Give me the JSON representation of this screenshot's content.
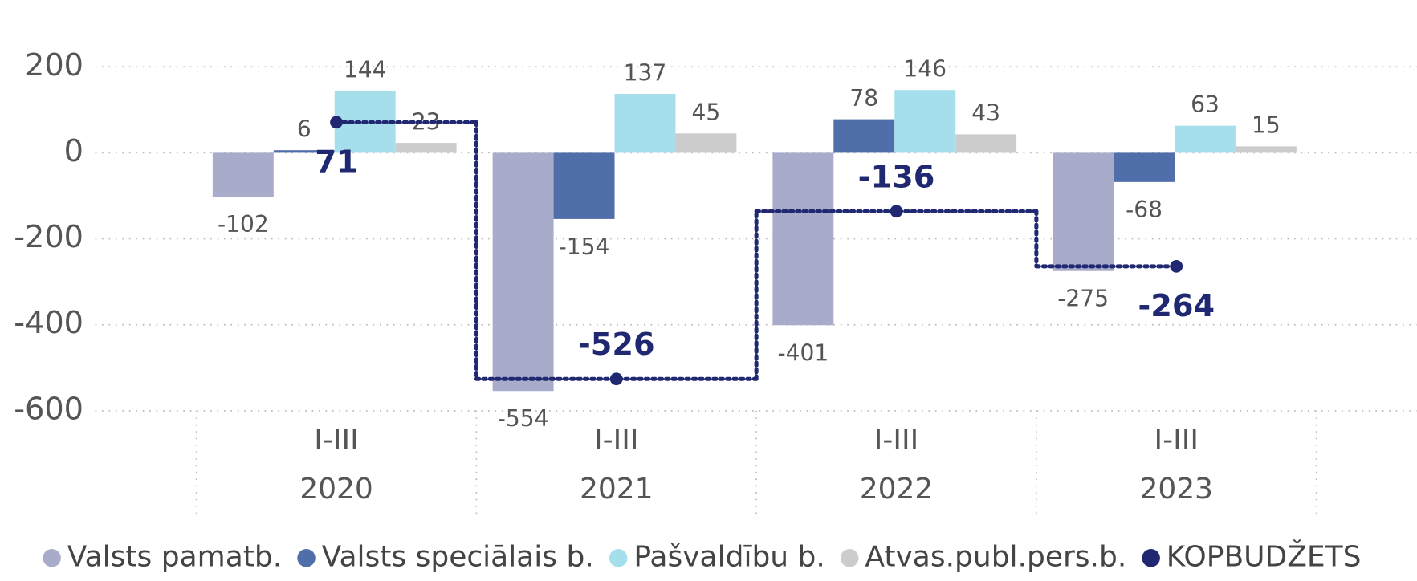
{
  "chart_data": {
    "type": "bar",
    "categories": [
      [
        "I-III",
        "2020"
      ],
      [
        "I-III",
        "2021"
      ],
      [
        "I-III",
        "2022"
      ],
      [
        "I-III",
        "2023"
      ]
    ],
    "series": [
      {
        "name": "Valsts pamatb.",
        "color": "#a9abca",
        "values": [
          -102,
          -554,
          -401,
          -275
        ]
      },
      {
        "name": "Valsts speciālais b.",
        "color": "#4f6eaa",
        "values": [
          6,
          -154,
          78,
          -68
        ]
      },
      {
        "name": "Pašvaldību b.",
        "color": "#a6dfec",
        "values": [
          144,
          137,
          146,
          63
        ]
      },
      {
        "name": "Atvas.publ.pers.b.",
        "color": "#cccccc",
        "values": [
          23,
          45,
          43,
          15
        ]
      },
      {
        "name": "KOPBUDŽETS",
        "color": "#1f2870",
        "type": "step",
        "values": [
          71,
          -526,
          -136,
          -264
        ]
      }
    ],
    "ylim": [
      -600,
      200
    ],
    "yticks": [
      -600,
      -400,
      -200,
      0,
      200
    ],
    "grid": true
  }
}
